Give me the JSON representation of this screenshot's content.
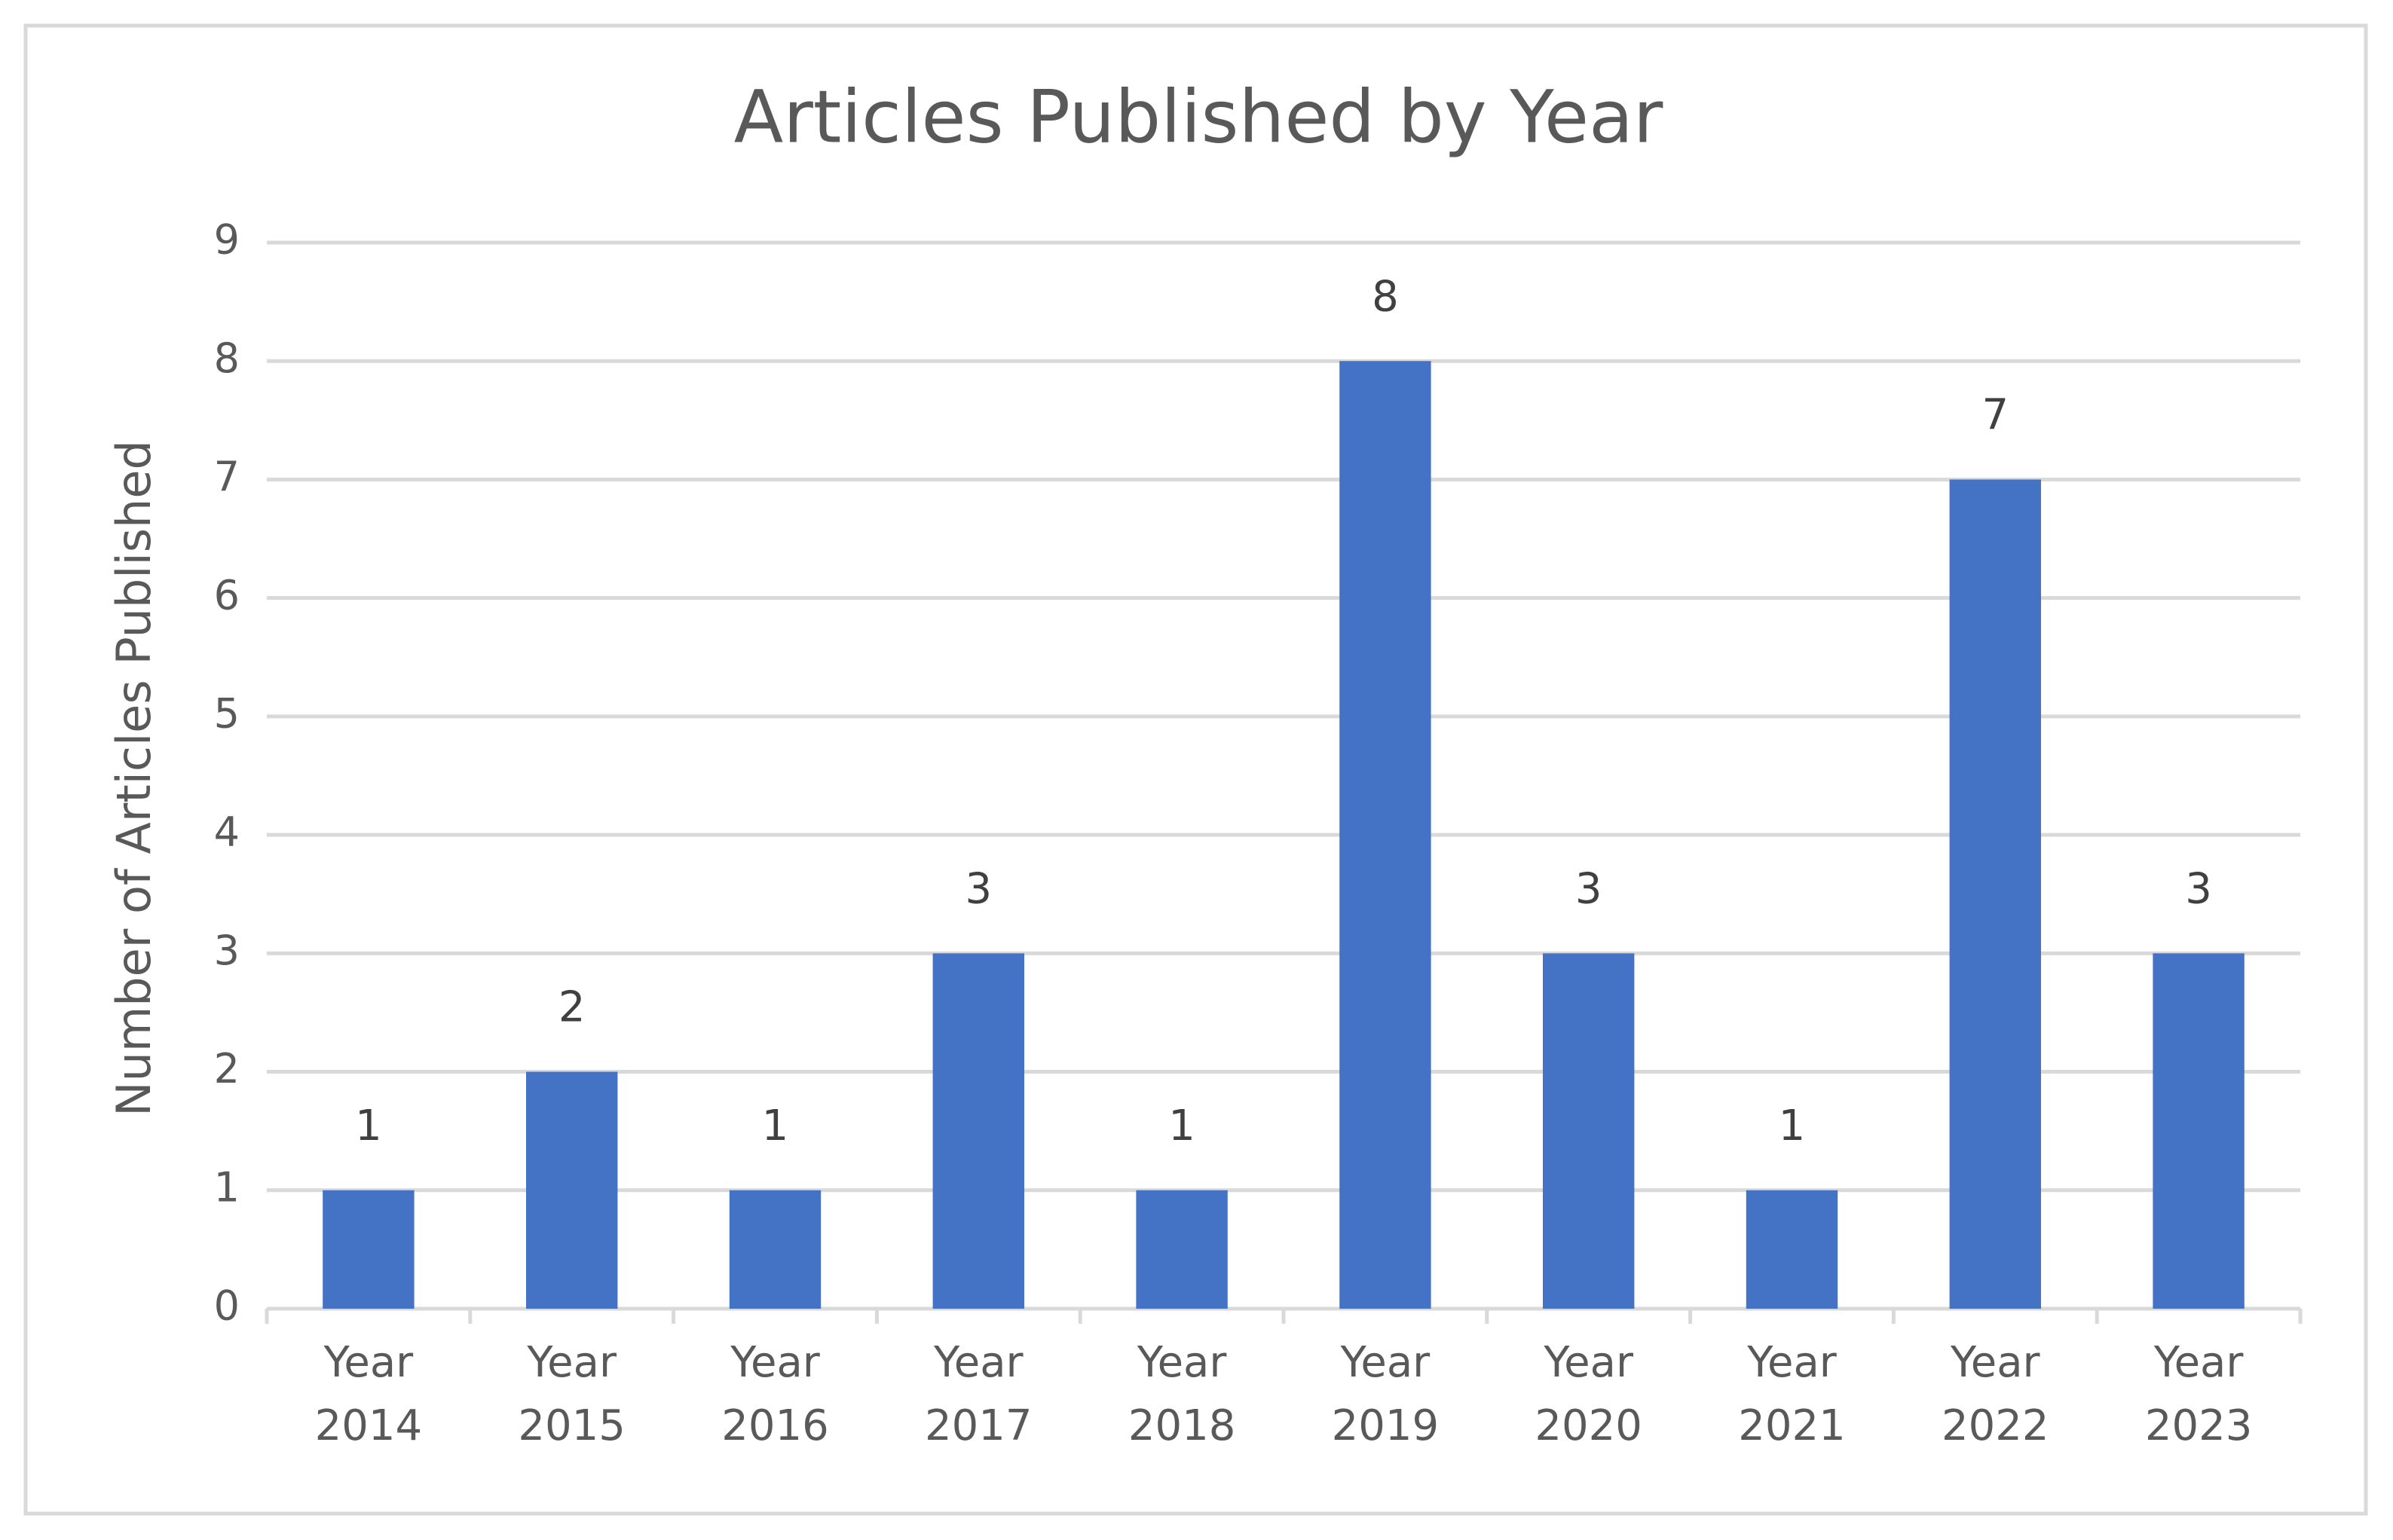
{
  "chart_data": {
    "type": "bar",
    "title": "Articles Published by Year",
    "y_label": "Number of Articles Published",
    "categories": [
      "Year 2014",
      "Year 2015",
      "Year 2016",
      "Year 2017",
      "Year 2018",
      "Year 2019",
      "Year 2020",
      "Year 2021",
      "Year 2022",
      "Year 2023"
    ],
    "values": [
      1,
      2,
      1,
      3,
      1,
      8,
      3,
      1,
      7,
      3
    ],
    "color": "#4472c4",
    "ylim": [
      0,
      9
    ],
    "yticks": [
      0,
      1,
      2,
      3,
      4,
      5,
      6,
      7,
      8,
      9
    ],
    "grid": true
  }
}
